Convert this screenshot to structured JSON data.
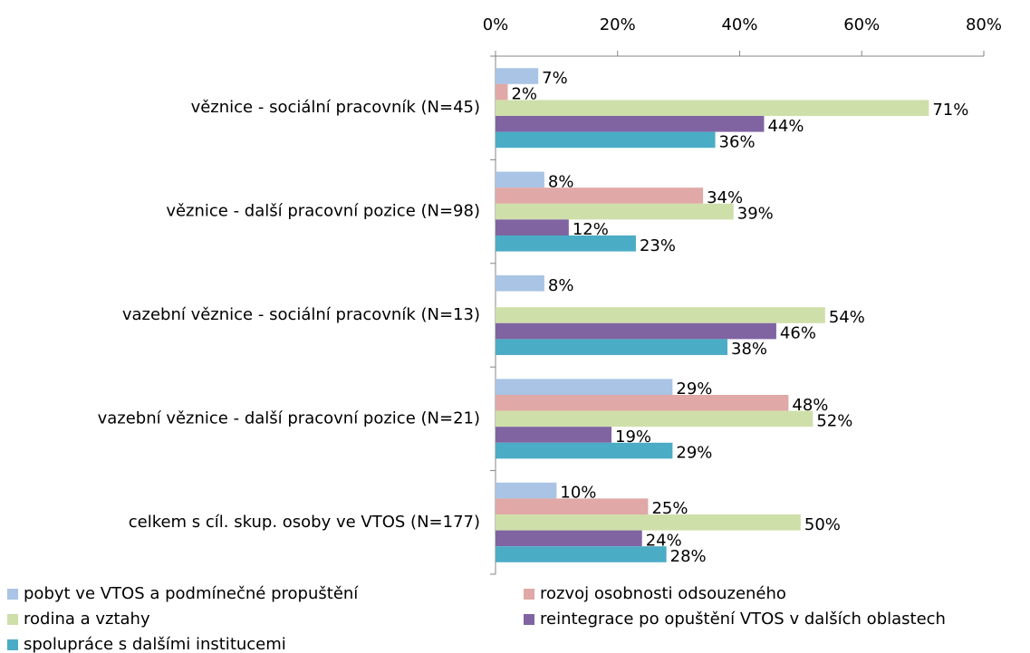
{
  "chart_data": {
    "type": "hbar",
    "categories": [
      "věznice - sociální pracovník (N=45)",
      "věznice - další pracovní pozice (N=98)",
      "vazební věznice - sociální pracovník (N=13)",
      "vazební věznice - další pracovní pozice (N=21)",
      "celkem s cíl. skup. osoby ve VTOS (N=177)"
    ],
    "series": [
      {
        "name": "pobyt ve VTOS a podmínečné propuštění",
        "color": "#a9c4e4",
        "values": [
          7,
          8,
          8,
          29,
          10
        ],
        "value_labels": [
          "7%",
          "8%",
          "8%",
          "29%",
          "10%"
        ]
      },
      {
        "name": "rozvoj osobnosti odsouzeného",
        "color": "#e0a8a6",
        "values": [
          2,
          34,
          null,
          48,
          25
        ],
        "value_labels": [
          "2%",
          "34%",
          null,
          "48%",
          "25%"
        ]
      },
      {
        "name": "rodina a vztahy",
        "color": "#cfdfaa",
        "values": [
          71,
          39,
          54,
          52,
          50
        ],
        "value_labels": [
          "71%",
          "39%",
          "54%",
          "52%",
          "50%"
        ]
      },
      {
        "name": "reintegrace po opuštění VTOS v dalších oblastech",
        "color": "#8064a2",
        "values": [
          44,
          12,
          46,
          19,
          24
        ],
        "value_labels": [
          "44%",
          "12%",
          "46%",
          "19%",
          "24%"
        ]
      },
      {
        "name": "spolupráce s dalšími institucemi",
        "color": "#4bacc6",
        "values": [
          36,
          23,
          38,
          29,
          28
        ],
        "value_labels": [
          "36%",
          "23%",
          "38%",
          "29%",
          "28%"
        ]
      }
    ],
    "xlim": [
      0,
      80
    ],
    "xticks": [
      {
        "value": 0,
        "label": "0%"
      },
      {
        "value": 20,
        "label": "20%"
      },
      {
        "value": 40,
        "label": "40%"
      },
      {
        "value": 60,
        "label": "60%"
      },
      {
        "value": 80,
        "label": "80%"
      }
    ],
    "legend": "bottom"
  }
}
